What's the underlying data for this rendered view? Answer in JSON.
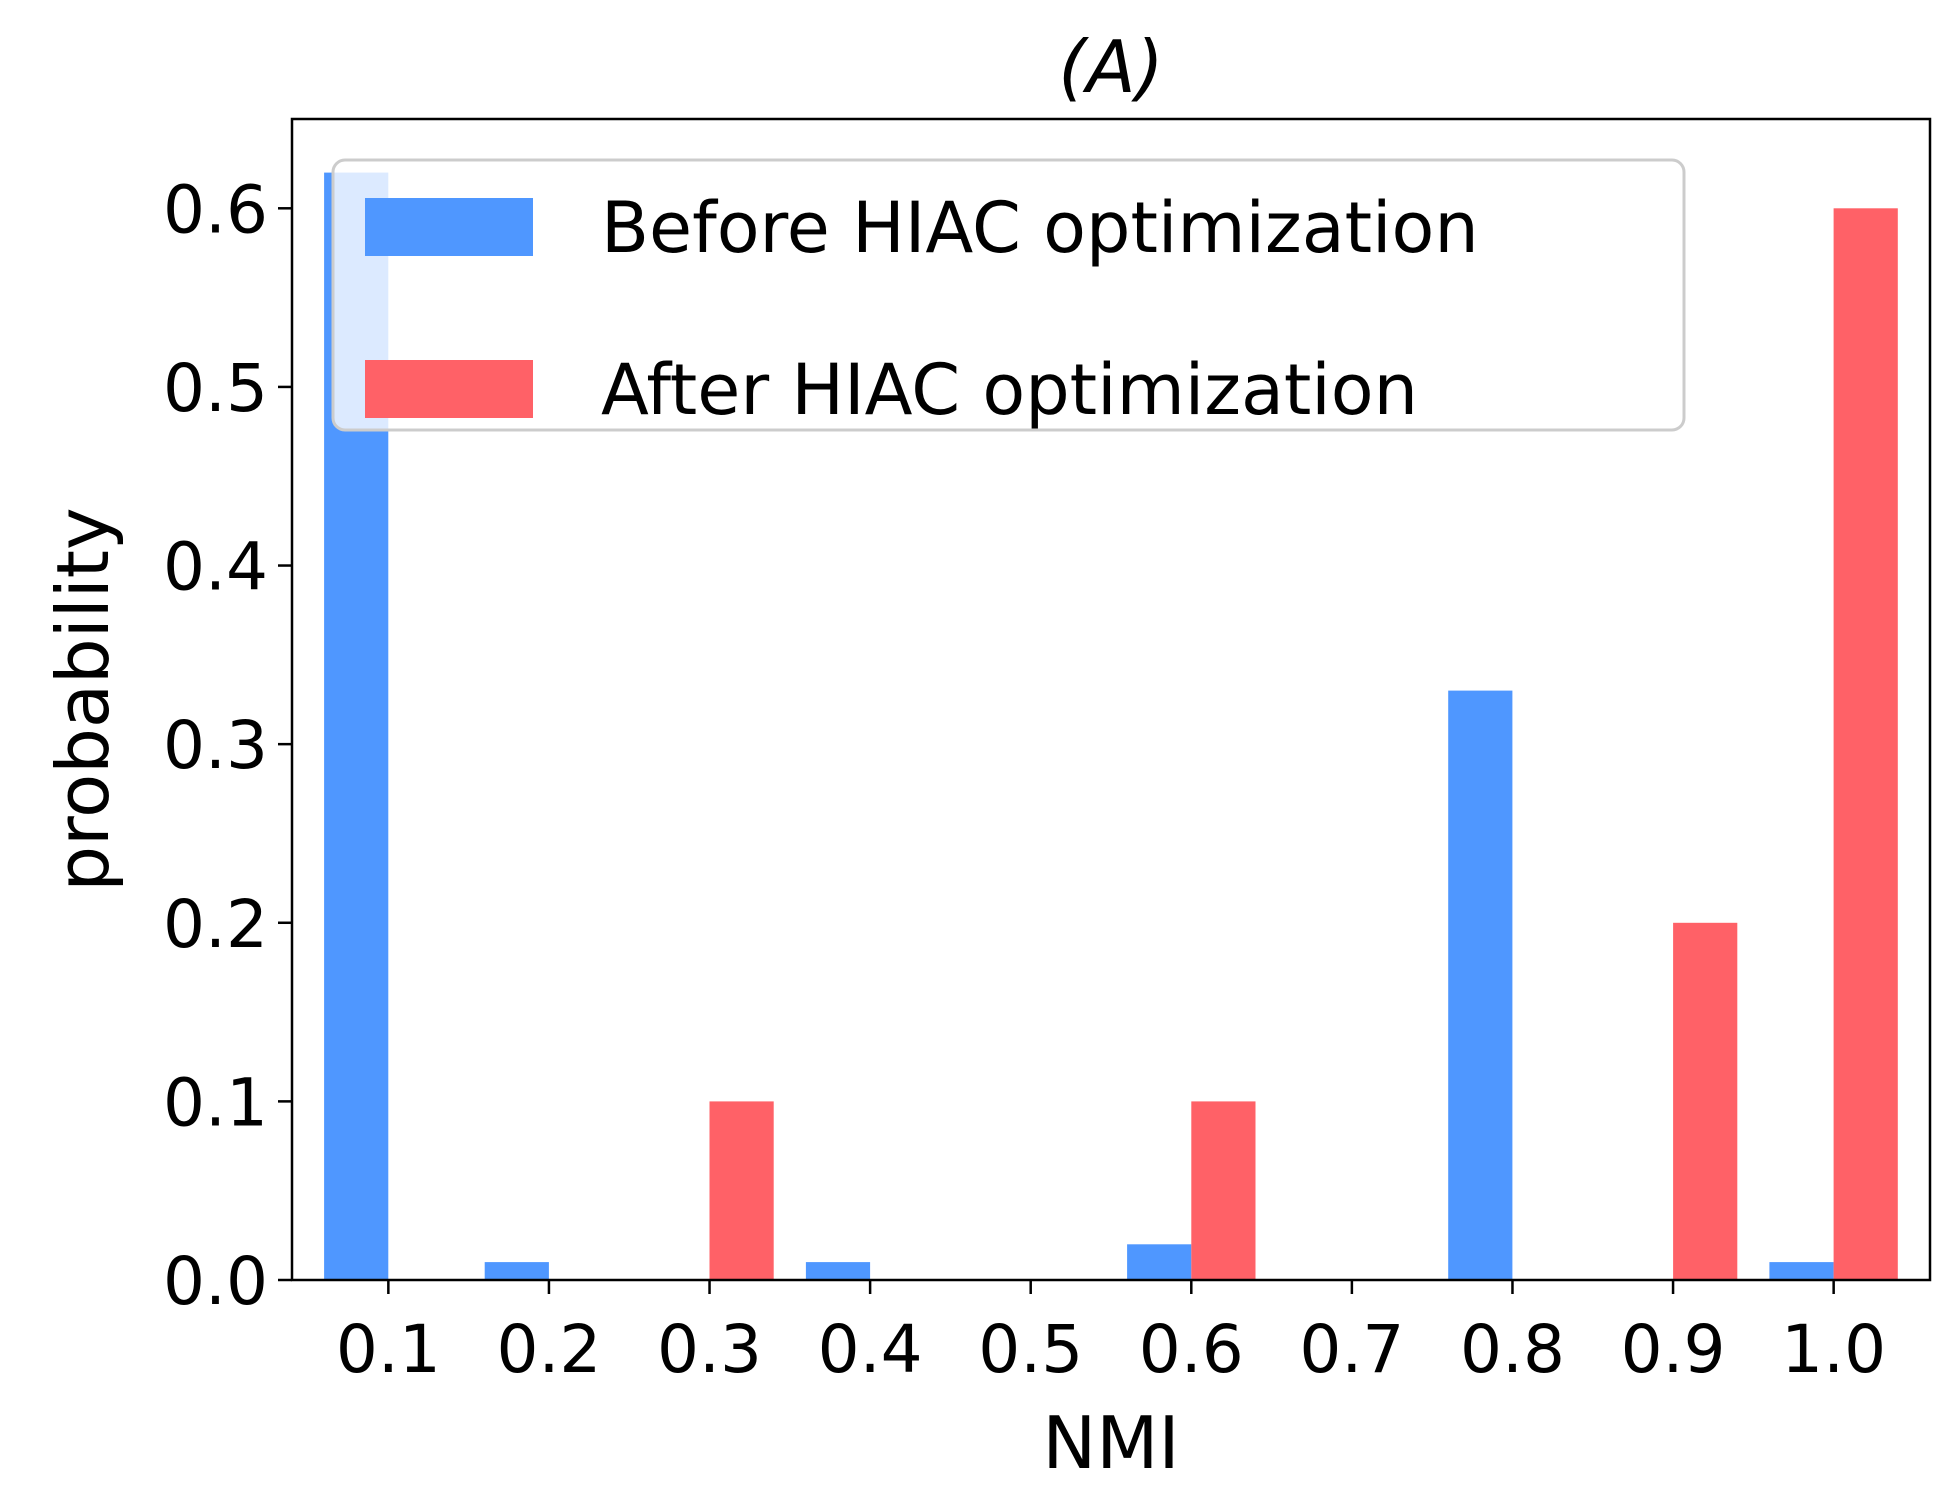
{
  "chart_data": {
    "type": "bar",
    "title": "(A)",
    "xlabel": "NMI",
    "ylabel": "probability",
    "categories": [
      "0.1",
      "0.2",
      "0.3",
      "0.4",
      "0.5",
      "0.6",
      "0.7",
      "0.8",
      "0.9",
      "1.0"
    ],
    "series": [
      {
        "name": "Before HIAC optimization",
        "color": "#4f97ff",
        "values": [
          0.62,
          0.01,
          0.0,
          0.01,
          0.0,
          0.02,
          0.0,
          0.33,
          0.0,
          0.01
        ]
      },
      {
        "name": "After HIAC optimization",
        "color": "#ff6167",
        "values": [
          0.0,
          0.0,
          0.1,
          0.0,
          0.0,
          0.1,
          0.0,
          0.0,
          0.2,
          0.6
        ]
      }
    ],
    "ylim": [
      0,
      0.65
    ],
    "yticks": [
      "0.0",
      "0.1",
      "0.2",
      "0.3",
      "0.4",
      "0.5",
      "0.6"
    ],
    "grid": false,
    "legend_position": "top"
  }
}
